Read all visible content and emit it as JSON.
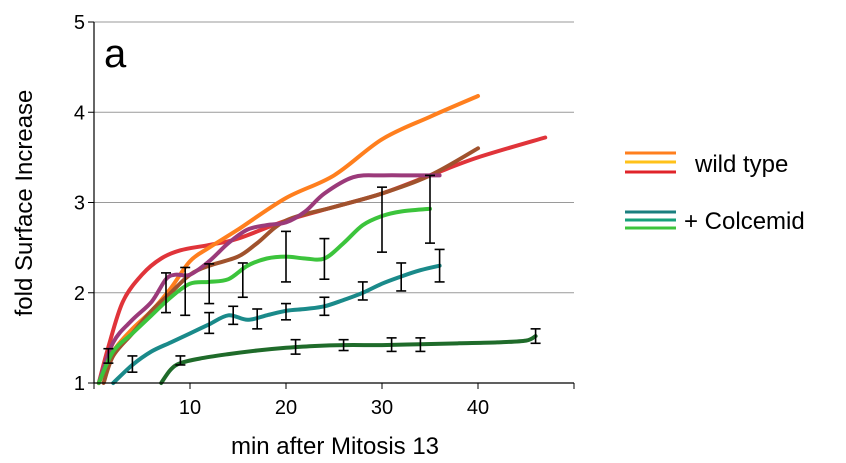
{
  "chart_data": {
    "type": "line",
    "panel_label": "a",
    "title": "",
    "xlabel": "min after Mitosis 13",
    "ylabel": "fold Surface Increase",
    "xlim": [
      0,
      50
    ],
    "ylim": [
      1,
      5
    ],
    "x_ticks": [
      10,
      20,
      30,
      40
    ],
    "y_ticks": [
      1,
      2,
      3,
      4,
      5
    ],
    "grid": "horizontal",
    "legend_position": "right",
    "legend": [
      {
        "label": "wild type",
        "colors": [
          "#ff7f1e",
          "#ffc21a",
          "#e0242a"
        ]
      },
      {
        "label": "+ Colcemid",
        "colors": [
          "#1a7f7f",
          "#16a07a",
          "#3cc43c"
        ]
      }
    ],
    "series": [
      {
        "color": "#e0343a",
        "x": [
          0.5,
          1.5,
          3,
          5,
          7,
          9,
          12,
          15,
          20,
          25,
          30,
          35,
          40,
          47
        ],
        "y": [
          1.0,
          1.4,
          1.9,
          2.2,
          2.38,
          2.47,
          2.53,
          2.6,
          2.8,
          2.95,
          3.1,
          3.3,
          3.5,
          3.72
        ]
      },
      {
        "color": "#ff7f1e",
        "x": [
          0.5,
          2,
          4,
          6,
          8,
          10,
          12,
          15,
          20,
          25,
          30,
          35,
          40
        ],
        "y": [
          1.0,
          1.35,
          1.6,
          1.8,
          2.05,
          2.35,
          2.5,
          2.7,
          3.05,
          3.3,
          3.7,
          3.95,
          4.18
        ]
      },
      {
        "color": "#a0522d",
        "x": [
          1,
          2,
          4,
          6,
          8,
          10,
          12,
          15,
          17,
          20,
          25,
          30,
          35,
          40
        ],
        "y": [
          1.0,
          1.3,
          1.55,
          1.8,
          2.0,
          2.2,
          2.3,
          2.4,
          2.55,
          2.8,
          2.95,
          3.1,
          3.3,
          3.6
        ]
      },
      {
        "color": "#9b3a7a",
        "x": [
          0.5,
          2,
          4,
          6,
          7.5,
          8.5,
          10,
          12,
          14,
          16,
          18,
          20,
          22,
          24,
          27,
          30,
          33,
          36
        ],
        "y": [
          1.0,
          1.45,
          1.7,
          1.9,
          2.15,
          2.2,
          2.2,
          2.35,
          2.55,
          2.7,
          2.75,
          2.78,
          2.9,
          3.1,
          3.28,
          3.3,
          3.3,
          3.3
        ]
      },
      {
        "color": "#3cc43c",
        "x": [
          0.5,
          2,
          4,
          6,
          8,
          10,
          12,
          14,
          16,
          18,
          20,
          22,
          24,
          26,
          28,
          30,
          32,
          35
        ],
        "y": [
          1.0,
          1.35,
          1.55,
          1.75,
          1.95,
          2.1,
          2.12,
          2.15,
          2.3,
          2.38,
          2.4,
          2.38,
          2.38,
          2.55,
          2.75,
          2.85,
          2.9,
          2.93
        ]
      },
      {
        "color": "#1a8a8a",
        "x": [
          2,
          4,
          6,
          8,
          10,
          12,
          14,
          16,
          18,
          20,
          22,
          24,
          26,
          28,
          30,
          32,
          34,
          36
        ],
        "y": [
          1.0,
          1.2,
          1.35,
          1.45,
          1.55,
          1.65,
          1.75,
          1.7,
          1.75,
          1.8,
          1.82,
          1.85,
          1.92,
          2.0,
          2.1,
          2.18,
          2.25,
          2.3
        ]
      },
      {
        "color": "#1f6b2a",
        "x": [
          7,
          8,
          9,
          11,
          14,
          17,
          20,
          23,
          26,
          30,
          34,
          38,
          42,
          45,
          46
        ],
        "y": [
          1.0,
          1.15,
          1.22,
          1.27,
          1.32,
          1.36,
          1.39,
          1.41,
          1.42,
          1.42,
          1.43,
          1.44,
          1.45,
          1.47,
          1.52
        ]
      }
    ],
    "error_bars": [
      {
        "x": 1.5,
        "y": 1.3,
        "lo": 1.22,
        "hi": 1.38
      },
      {
        "x": 4,
        "y": 1.2,
        "lo": 1.12,
        "hi": 1.3
      },
      {
        "x": 7.5,
        "y": 2.0,
        "lo": 1.78,
        "hi": 2.22
      },
      {
        "x": 9.5,
        "y": 2.05,
        "lo": 1.75,
        "hi": 2.28
      },
      {
        "x": 12,
        "y": 2.1,
        "lo": 1.88,
        "hi": 2.32
      },
      {
        "x": 12,
        "y": 1.65,
        "lo": 1.55,
        "hi": 1.78
      },
      {
        "x": 15.5,
        "y": 2.15,
        "lo": 1.95,
        "hi": 2.33
      },
      {
        "x": 14.5,
        "y": 1.75,
        "lo": 1.65,
        "hi": 1.85
      },
      {
        "x": 17,
        "y": 1.7,
        "lo": 1.6,
        "hi": 1.82
      },
      {
        "x": 20,
        "y": 2.4,
        "lo": 2.12,
        "hi": 2.68
      },
      {
        "x": 20,
        "y": 1.78,
        "lo": 1.7,
        "hi": 1.88
      },
      {
        "x": 24,
        "y": 2.38,
        "lo": 2.15,
        "hi": 2.6
      },
      {
        "x": 24,
        "y": 1.85,
        "lo": 1.75,
        "hi": 1.95
      },
      {
        "x": 28,
        "y": 2.0,
        "lo": 1.92,
        "hi": 2.12
      },
      {
        "x": 30,
        "y": 2.8,
        "lo": 2.45,
        "hi": 3.17
      },
      {
        "x": 32,
        "y": 2.18,
        "lo": 2.02,
        "hi": 2.33
      },
      {
        "x": 35,
        "y": 2.93,
        "lo": 2.55,
        "hi": 3.3
      },
      {
        "x": 36,
        "y": 2.3,
        "lo": 2.12,
        "hi": 2.48
      },
      {
        "x": 9,
        "y": 1.25,
        "lo": 1.2,
        "hi": 1.3
      },
      {
        "x": 21,
        "y": 1.4,
        "lo": 1.32,
        "hi": 1.48
      },
      {
        "x": 26,
        "y": 1.42,
        "lo": 1.36,
        "hi": 1.48
      },
      {
        "x": 31,
        "y": 1.42,
        "lo": 1.35,
        "hi": 1.5
      },
      {
        "x": 34,
        "y": 1.42,
        "lo": 1.35,
        "hi": 1.5
      },
      {
        "x": 46,
        "y": 1.52,
        "lo": 1.44,
        "hi": 1.6
      }
    ]
  }
}
